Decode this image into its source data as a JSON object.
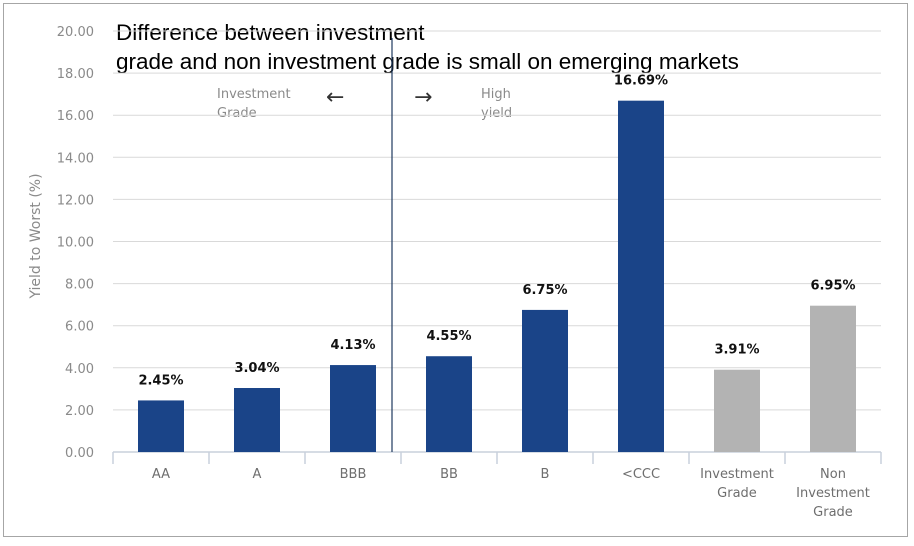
{
  "chart_data": {
    "type": "bar",
    "title": "Difference between investment grade and non investment grade is small on emerging markets",
    "title_lines": [
      "Difference between investment",
      "grade and non investment grade is small on emerging markets"
    ],
    "xlabel": "",
    "ylabel": "Yield to Worst (%)",
    "ylim": [
      0,
      20
    ],
    "yticks": [
      "0.00",
      "2.00",
      "4.00",
      "6.00",
      "8.00",
      "10.00",
      "12.00",
      "14.00",
      "16.00",
      "18.00",
      "20.00"
    ],
    "grid": true,
    "categories": [
      "AA",
      "A",
      "BBB",
      "BB",
      "B",
      "<CCC",
      "Investment Grade",
      "Non Investment Grade"
    ],
    "category_lines": [
      [
        "AA"
      ],
      [
        "A"
      ],
      [
        "BBB"
      ],
      [
        "BB"
      ],
      [
        "B"
      ],
      [
        "<CCC"
      ],
      [
        "Investment",
        "Grade"
      ],
      [
        "Non",
        "Investment",
        "Grade"
      ]
    ],
    "values": [
      2.45,
      3.04,
      4.13,
      4.55,
      6.75,
      16.69,
      3.91,
      6.95
    ],
    "data_labels": [
      "2.45%",
      "3.04%",
      "4.13%",
      "4.55%",
      "6.75%",
      "16.69%",
      "3.91%",
      "6.95%"
    ],
    "bar_colors": [
      "#1a4488",
      "#1a4488",
      "#1a4488",
      "#1a4488",
      "#1a4488",
      "#1a4488",
      "#b3b3b3",
      "#b3b3b3"
    ],
    "divider_after_category": "BBB",
    "annotations": {
      "left": {
        "text_lines": [
          "Investment",
          "Grade"
        ],
        "arrow": "←"
      },
      "right": {
        "text_lines": [
          "High",
          "yield"
        ],
        "arrow": "→"
      }
    }
  },
  "colors": {
    "investment_bar": "#1a4488",
    "aggregate_bar": "#b3b3b3",
    "grid": "#d9d9d9",
    "axis_text": "#8a8a8a",
    "divider": "#1f3a5f"
  }
}
